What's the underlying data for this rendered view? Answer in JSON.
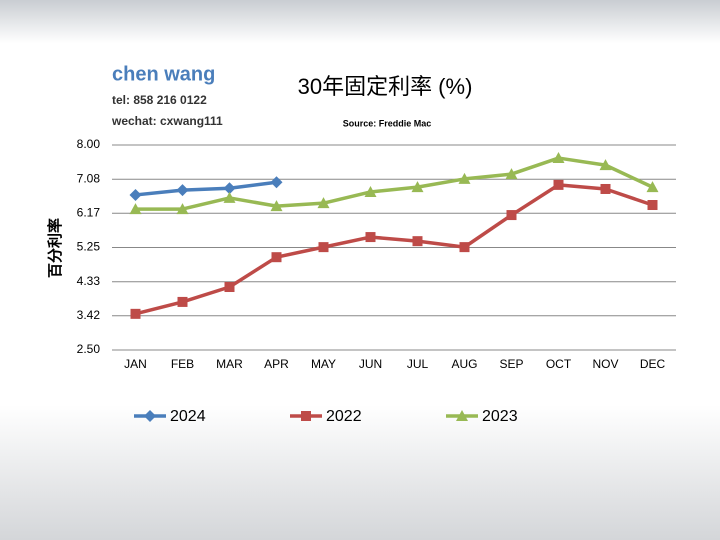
{
  "header": {
    "name": "chen wang",
    "tel": "tel: 858 216 0122",
    "wechat": "wechat: cxwang111"
  },
  "chart_data": {
    "type": "line",
    "title": "30年固定利率 (%)",
    "subtitle": "Source: Freddie Mac",
    "y_label": "百分利率",
    "categories": [
      "JAN",
      "FEB",
      "MAR",
      "APR",
      "MAY",
      "JUN",
      "JUL",
      "AUG",
      "SEP",
      "OCT",
      "NOV",
      "DEC"
    ],
    "series": [
      {
        "name": "2024",
        "color": "#4a7ebb",
        "marker": "diamond",
        "values": [
          6.66,
          6.79,
          6.84,
          7.0,
          null,
          null,
          null,
          null,
          null,
          null,
          null,
          null
        ]
      },
      {
        "name": "2022",
        "color": "#be4b48",
        "marker": "square",
        "values": [
          3.47,
          3.79,
          4.19,
          4.99,
          5.26,
          5.53,
          5.42,
          5.26,
          6.12,
          6.93,
          6.82,
          6.39
        ]
      },
      {
        "name": "2023",
        "color": "#98b954",
        "marker": "triangle",
        "values": [
          6.28,
          6.28,
          6.58,
          6.36,
          6.44,
          6.74,
          6.87,
          7.09,
          7.22,
          7.65,
          7.46,
          6.87
        ]
      }
    ],
    "ylim": [
      2.5,
      8
    ],
    "yticks": [
      {
        "value": 8,
        "label": "8.00"
      },
      {
        "value": 7.08,
        "label": "7.08"
      },
      {
        "value": 6.17,
        "label": "6.17"
      },
      {
        "value": 5.25,
        "label": "5.25"
      },
      {
        "value": 4.33,
        "label": "4.33"
      },
      {
        "value": 3.42,
        "label": "3.42"
      },
      {
        "value": 2.5,
        "label": "2.50"
      }
    ],
    "grid": true,
    "legend": "bottom"
  }
}
